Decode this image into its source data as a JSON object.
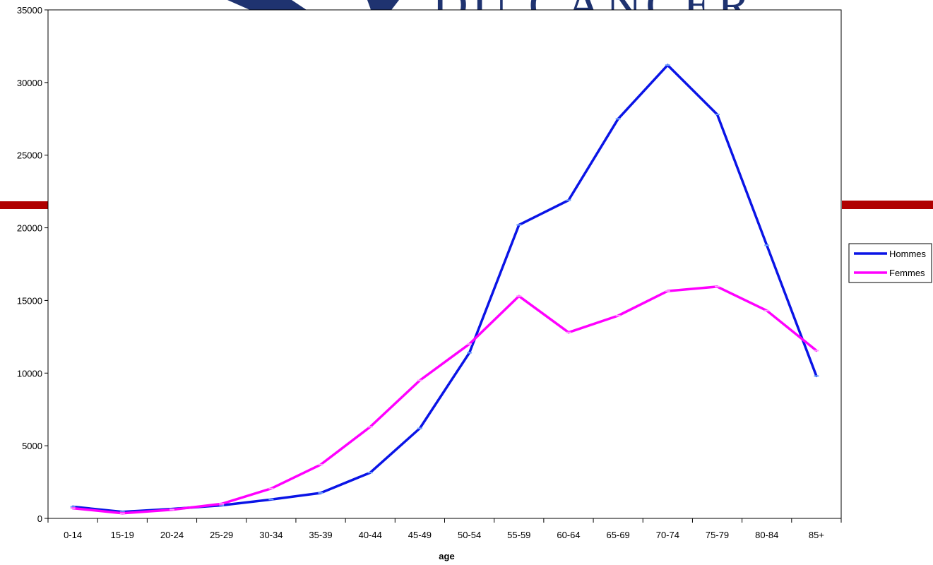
{
  "background": {
    "title_fragment": "DU CANCER",
    "bar_color": "#b00000",
    "mark_color": "#1f3370"
  },
  "chart_data": {
    "type": "line",
    "xlabel": "age",
    "ylabel": "",
    "title": "",
    "categories": [
      "0-14",
      "15-19",
      "20-24",
      "25-29",
      "30-34",
      "35-39",
      "40-44",
      "45-49",
      "50-54",
      "55-59",
      "60-64",
      "65-69",
      "70-74",
      "75-79",
      "80-84",
      "85+"
    ],
    "ylim": [
      0,
      35000
    ],
    "yticks": [
      0,
      5000,
      10000,
      15000,
      20000,
      25000,
      30000,
      35000
    ],
    "grid": false,
    "legend_position": "right",
    "series": [
      {
        "name": "Hommes",
        "color": "#0a14e6",
        "values": [
          800,
          450,
          650,
          900,
          1300,
          1750,
          3150,
          6200,
          11400,
          20200,
          21900,
          27500,
          31200,
          27800,
          18800,
          9800
        ]
      },
      {
        "name": "Femmes",
        "color": "#ff00ff",
        "values": [
          700,
          350,
          600,
          1000,
          2050,
          3700,
          6300,
          9500,
          12000,
          15300,
          12800,
          13950,
          15650,
          15950,
          14300,
          11550
        ]
      }
    ]
  }
}
